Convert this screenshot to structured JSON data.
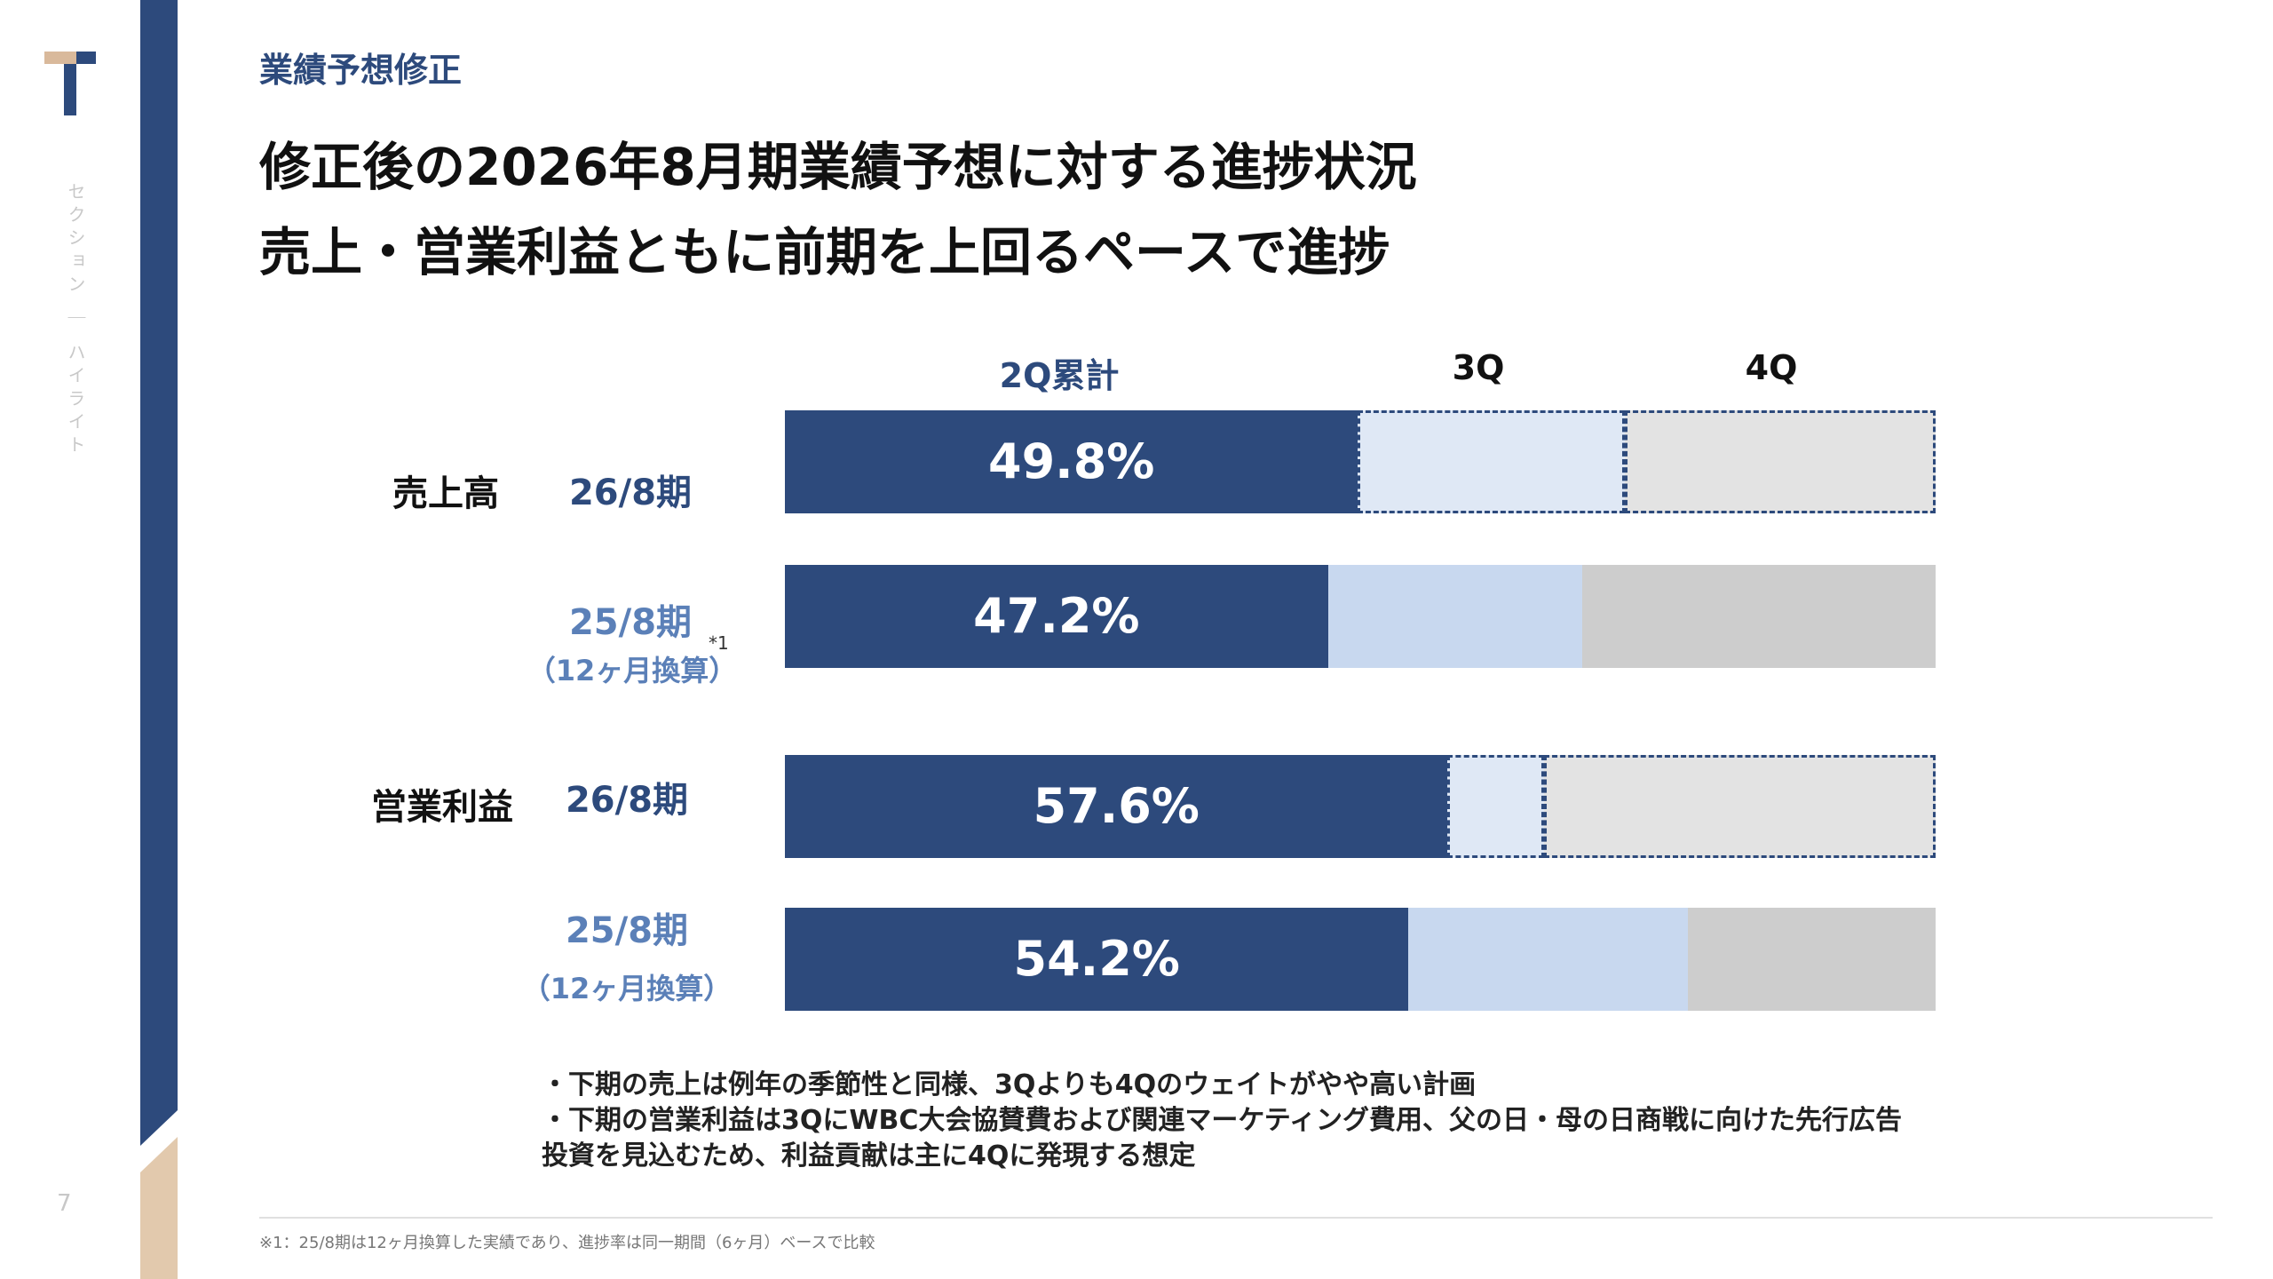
{
  "sidebar": {
    "vertical_label": "セクション ｜ ハイライト",
    "page_number": "7"
  },
  "header": {
    "section_label": "業績予想修正",
    "headline_line1": "修正後の2026年8月期業績予想に対する進捗状況",
    "headline_line2": "売上・営業利益ともに前期を上回るペースで進捗"
  },
  "colors": {
    "brand_navy": "#2d4a7c",
    "brand_tan": "#d9b99b",
    "q3_actual": "#c8d8ef",
    "q4_actual": "#cdcdcd",
    "q3_forecast": "#dfe8f5",
    "q4_forecast": "#e3e3e3"
  },
  "chart_data": {
    "type": "bar",
    "orientation": "horizontal",
    "stacked": true,
    "xlim": [
      0,
      100
    ],
    "column_labels": [
      "2Q累計",
      "3Q",
      "4Q"
    ],
    "groups": [
      {
        "category": "売上高",
        "rows": [
          {
            "period": "26/8期",
            "sub": "",
            "note_mark": "",
            "style": "forecast",
            "h1_pct": 49.8,
            "h1_label": "49.8%",
            "q3_end_pct": 73
          },
          {
            "period": "25/8期",
            "sub": "（12ヶ月換算）",
            "note_mark": "*1",
            "style": "actual",
            "h1_pct": 47.2,
            "h1_label": "47.2%",
            "q3_end_pct": 69.3
          }
        ]
      },
      {
        "category": "営業利益",
        "rows": [
          {
            "period": "26/8期",
            "sub": "",
            "note_mark": "",
            "style": "forecast",
            "h1_pct": 57.6,
            "h1_label": "57.6%",
            "q3_end_pct": 66
          },
          {
            "period": "25/8期",
            "sub": "（12ヶ月換算）",
            "note_mark": "",
            "style": "actual",
            "h1_pct": 54.2,
            "h1_label": "54.2%",
            "q3_end_pct": 78.5
          }
        ]
      }
    ]
  },
  "notes": [
    "・下期の売上は例年の季節性と同様、3Qよりも4Qのウェイトがやや高い計画",
    "・下期の営業利益は3QにWBC大会協賛費および関連マーケティング費用、父の日・母の日商戦に向けた先行広告",
    "投資を見込むため、利益貢献は主に4Qに発現する想定"
  ],
  "footnote": "※1：25/8期は12ヶ月換算した実績であり、進捗率は同一期間（6ヶ月）ベースで比較"
}
